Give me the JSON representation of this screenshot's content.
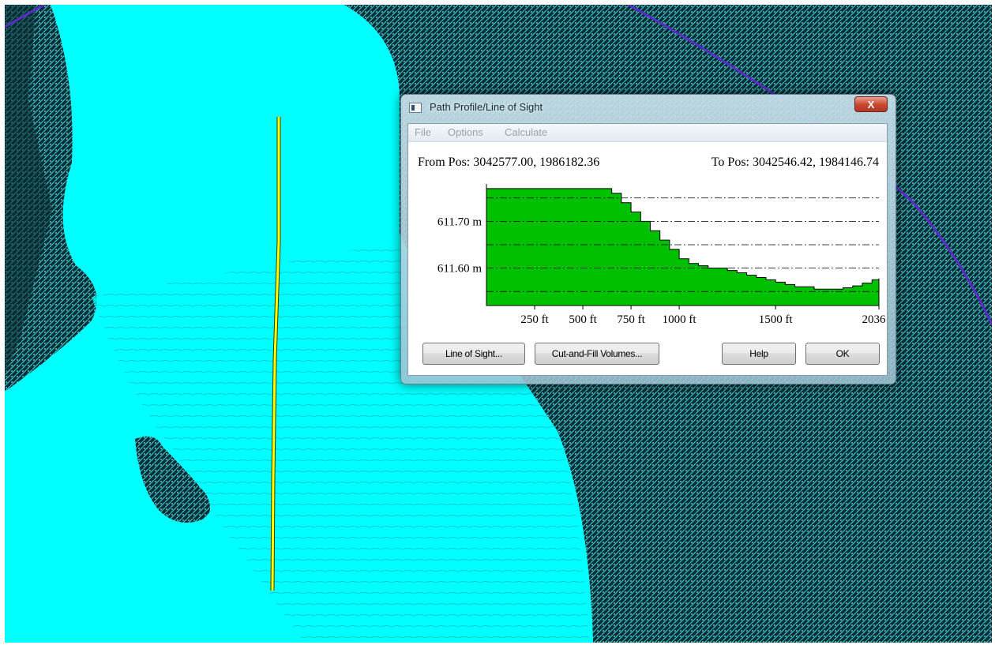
{
  "window": {
    "title": "Path Profile/Line of Sight",
    "close_label": "X"
  },
  "menu": [
    "File",
    "Options",
    "Calculate"
  ],
  "positions": {
    "from": "From Pos: 3042577.00, 1986182.36",
    "to": "To Pos: 3042546.42, 1984146.74"
  },
  "buttons": {
    "line_of_sight": "Line of Sight...",
    "cut_and_fill": "Cut-and-Fill Volumes...",
    "help": "Help",
    "ok": "OK"
  },
  "colors": {
    "profile_fill": "#00c000",
    "water": "#00ffff",
    "path_line": "#ffff00",
    "boundary_line": "#5a2cc8",
    "terrain": "#0d2f36"
  },
  "chart_data": {
    "type": "area",
    "x_unit": "ft",
    "y_unit": "m",
    "x_ticks": [
      250,
      500,
      750,
      1000,
      1500,
      2036
    ],
    "x_tick_labels": [
      "250 ft",
      "500 ft",
      "750 ft",
      "1000 ft",
      "1500 ft",
      "2036 ft"
    ],
    "y_ticks": [
      611.6,
      611.7
    ],
    "y_tick_labels": [
      "611.60 m",
      "611.70 m"
    ],
    "xlim": [
      0,
      2036
    ],
    "ylim": [
      611.52,
      611.78
    ],
    "grid": "dash-dot horizontal",
    "x": [
      0,
      100,
      200,
      300,
      400,
      500,
      600,
      650,
      700,
      750,
      800,
      850,
      900,
      950,
      1000,
      1050,
      1100,
      1150,
      1200,
      1250,
      1300,
      1350,
      1400,
      1450,
      1500,
      1550,
      1600,
      1650,
      1700,
      1750,
      1800,
      1850,
      1900,
      1950,
      2000,
      2036
    ],
    "y": [
      611.77,
      611.77,
      611.77,
      611.77,
      611.77,
      611.77,
      611.77,
      611.76,
      611.74,
      611.72,
      611.7,
      611.68,
      611.66,
      611.64,
      611.62,
      611.61,
      611.605,
      611.6,
      611.6,
      611.595,
      611.59,
      611.585,
      611.58,
      611.575,
      611.57,
      611.565,
      611.56,
      611.56,
      611.555,
      611.555,
      611.555,
      611.558,
      611.562,
      611.568,
      611.575,
      611.578
    ]
  }
}
